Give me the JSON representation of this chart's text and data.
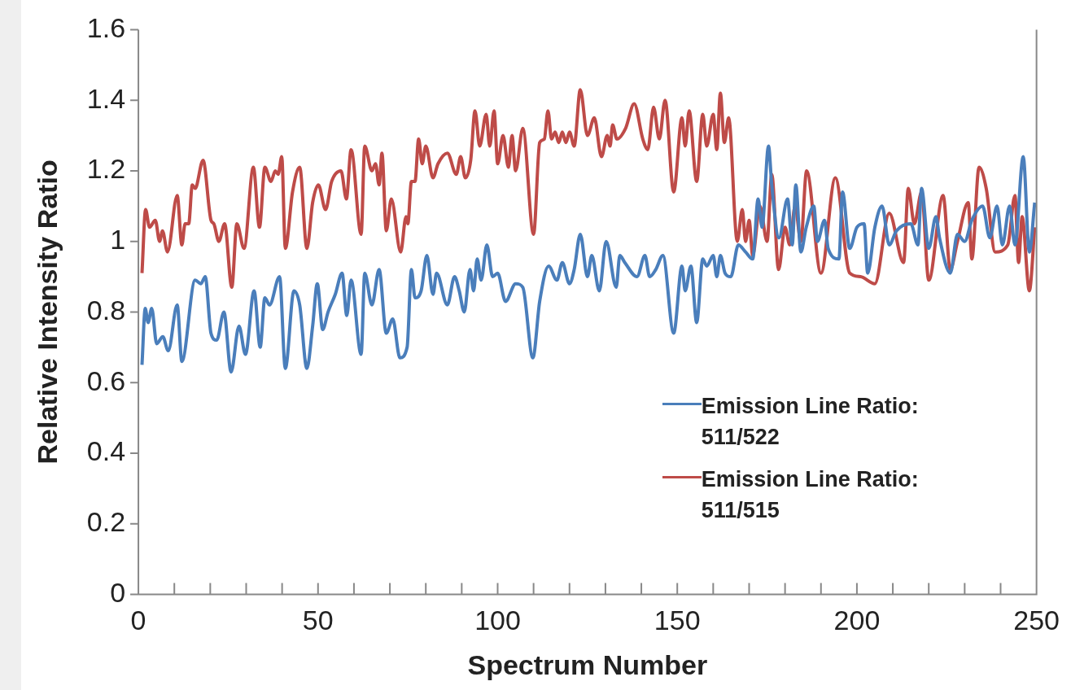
{
  "chart_data": {
    "type": "line",
    "xlabel": "Spectrum Number",
    "ylabel": "Relative Intensity Ratio",
    "xlim": [
      0,
      250
    ],
    "xticks": [
      0,
      {
        "value": 10,
        "label": null
      },
      {
        "value": 20,
        "label": null
      },
      {
        "value": 30,
        "label": null
      },
      {
        "value": 40,
        "label": null
      },
      50,
      {
        "value": 60,
        "label": null
      },
      {
        "value": 70,
        "label": null
      },
      {
        "value": 80,
        "label": null
      },
      {
        "value": 90,
        "label": null
      },
      100,
      {
        "value": 110,
        "label": null
      },
      {
        "value": 120,
        "label": null
      },
      {
        "value": 130,
        "label": null
      },
      {
        "value": 140,
        "label": null
      },
      150,
      {
        "value": 160,
        "label": null
      },
      {
        "value": 170,
        "label": null
      },
      {
        "value": 180,
        "label": null
      },
      {
        "value": 190,
        "label": null
      },
      200,
      {
        "value": 210,
        "label": null
      },
      {
        "value": 220,
        "label": null
      },
      {
        "value": 230,
        "label": null
      },
      {
        "value": 240,
        "label": null
      },
      250
    ],
    "ylim": [
      0,
      1.6
    ],
    "yticks": [
      0,
      0.2,
      0.4,
      0.6,
      0.8,
      1,
      1.2,
      1.4,
      1.6
    ],
    "grid": false,
    "legend": "bottom right",
    "line_style": "solid",
    "marker": "none",
    "series": [
      {
        "name": "Emission Line Ratio: 511/522",
        "color": "#4a7ebb",
        "x": [
          1,
          1.9,
          2.7,
          3.7,
          5.1,
          6.8,
          8.3,
          10.8,
          12.1,
          15.8,
          17.4,
          18.6,
          20.2,
          21.8,
          23.8,
          25.8,
          28,
          29.8,
          32.2,
          33.9,
          35.2,
          36.5,
          39.3,
          40.9,
          43.3,
          44.9,
          46.9,
          48.5,
          49.8,
          51.3,
          52.8,
          54.8,
          56.7,
          58,
          59.2,
          62,
          63,
          65,
          67,
          69,
          70.8,
          72.8,
          74.8,
          76,
          77,
          78.7,
          80.3,
          82,
          83,
          86,
          88,
          89.3,
          90.7,
          92.3,
          93.3,
          94.3,
          95.4,
          97,
          98.6,
          100,
          102.2,
          105,
          107,
          109.8,
          111.7,
          114.2,
          116.5,
          118,
          120,
          121.3,
          123,
          125,
          126.2,
          128.3,
          130.2,
          133,
          134,
          135.4,
          138.8,
          141,
          142.3,
          144,
          146,
          149,
          151.3,
          152.2,
          153.8,
          155.4,
          157.1,
          158.2,
          160,
          161,
          162,
          163.3,
          164.9,
          167,
          169,
          171,
          172.5,
          173.6,
          175.4,
          176.3,
          178.3,
          180.7,
          182,
          183,
          184.4,
          185.9,
          188,
          189,
          191,
          192,
          195,
          196,
          198,
          200,
          202,
          203,
          205,
          207,
          209,
          211,
          215,
          217,
          218,
          220,
          222,
          223,
          226,
          228,
          230,
          232,
          235,
          237,
          239,
          240.5,
          242.5,
          244,
          246.3,
          248,
          249.5
        ],
        "values": [
          0.65,
          0.81,
          0.77,
          0.81,
          0.71,
          0.73,
          0.69,
          0.82,
          0.66,
          0.89,
          0.88,
          0.9,
          0.74,
          0.72,
          0.8,
          0.63,
          0.76,
          0.68,
          0.86,
          0.7,
          0.84,
          0.82,
          0.9,
          0.64,
          0.86,
          0.82,
          0.64,
          0.76,
          0.88,
          0.75,
          0.8,
          0.85,
          0.91,
          0.79,
          0.89,
          0.68,
          0.91,
          0.82,
          0.92,
          0.74,
          0.78,
          0.67,
          0.7,
          0.92,
          0.84,
          0.86,
          0.96,
          0.85,
          0.91,
          0.82,
          0.9,
          0.86,
          0.8,
          0.92,
          0.86,
          0.95,
          0.89,
          0.99,
          0.9,
          0.91,
          0.83,
          0.88,
          0.87,
          0.67,
          0.83,
          0.93,
          0.89,
          0.94,
          0.88,
          0.92,
          1.02,
          0.9,
          0.96,
          0.86,
          1,
          0.87,
          0.96,
          0.94,
          0.9,
          0.96,
          0.9,
          0.92,
          0.96,
          0.74,
          0.93,
          0.86,
          0.93,
          0.77,
          0.95,
          0.93,
          0.96,
          0.9,
          0.96,
          0.91,
          0.9,
          0.99,
          0.97,
          0.95,
          1.12,
          1.04,
          1.27,
          1.16,
          1.01,
          1.12,
          0.99,
          1.16,
          0.97,
          1.04,
          1.1,
          1,
          1.06,
          0.98,
          0.95,
          1.14,
          0.98,
          1.04,
          1.05,
          0.91,
          1.04,
          1.1,
          0.99,
          1.03,
          1.05,
          0.99,
          1.15,
          0.98,
          1.07,
          1.01,
          0.91,
          1.02,
          1,
          1.06,
          1.1,
          1.01,
          1.1,
          0.99,
          1.1,
          0.99,
          1.24,
          0.97,
          1.11
        ]
      },
      {
        "name": "Emission Line Ratio: 511/515",
        "color": "#be4b48",
        "x": [
          1,
          2,
          3.1,
          4.7,
          5.9,
          6.7,
          8.1,
          10.8,
          12.1,
          13,
          14,
          15,
          15.8,
          18,
          20.2,
          21,
          22.4,
          24,
          26,
          27.4,
          29.4,
          32,
          33.7,
          35.2,
          36.9,
          38.1,
          38.9,
          39.9,
          40.9,
          42.9,
          44.9,
          46.9,
          48.5,
          50.1,
          52.1,
          53.8,
          56.4,
          57.9,
          59.2,
          62,
          63,
          65,
          66,
          67,
          67.8,
          69,
          70.4,
          73,
          74.5,
          75,
          76,
          77,
          78,
          79,
          80,
          82,
          83.4,
          86,
          88.5,
          89.7,
          91,
          92.5,
          93.7,
          95,
          96.8,
          97.8,
          99,
          100,
          101.5,
          103,
          104,
          105,
          107,
          110,
          111.7,
          113,
          114,
          115,
          116,
          117,
          118,
          119,
          120,
          121.3,
          123,
          125,
          126.9,
          128.9,
          130.5,
          131.3,
          132,
          133.2,
          135.6,
          138,
          140.4,
          141.8,
          143.4,
          145,
          146.6,
          149,
          151.3,
          152.2,
          153.3,
          155.4,
          157.1,
          158.2,
          160,
          161,
          162,
          163.1,
          164.3,
          166.7,
          168.1,
          169,
          170,
          171,
          173,
          175,
          176.3,
          178.2,
          180,
          181.3,
          182.8,
          184.4,
          186,
          190,
          194,
          198,
          201,
          205,
          209,
          213,
          214.3,
          216,
          218,
          220,
          224,
          226,
          228,
          231,
          232,
          234,
          236,
          238.5,
          242,
          244,
          245,
          246,
          248,
          249.5
        ],
        "values": [
          0.91,
          1.09,
          1.04,
          1.06,
          1,
          1.03,
          0.97,
          1.13,
          0.99,
          1.05,
          1.05,
          1.16,
          1.15,
          1.23,
          1.06,
          1.05,
          1,
          1.05,
          0.87,
          1.05,
          0.98,
          1.21,
          1.04,
          1.21,
          1.17,
          1.2,
          1.19,
          1.24,
          0.98,
          1.14,
          1.21,
          0.98,
          1.11,
          1.16,
          1.09,
          1.17,
          1.2,
          1.12,
          1.26,
          1.02,
          1.27,
          1.2,
          1.22,
          1.16,
          1.25,
          1.03,
          1.12,
          0.97,
          1.07,
          1.05,
          1.17,
          1.17,
          1.29,
          1.22,
          1.27,
          1.18,
          1.22,
          1.25,
          1.19,
          1.24,
          1.18,
          1.23,
          1.37,
          1.27,
          1.36,
          1.27,
          1.37,
          1.22,
          1.3,
          1.21,
          1.3,
          1.2,
          1.32,
          1.02,
          1.28,
          1.29,
          1.37,
          1.29,
          1.31,
          1.28,
          1.31,
          1.28,
          1.31,
          1.27,
          1.43,
          1.3,
          1.35,
          1.24,
          1.3,
          1.27,
          1.33,
          1.29,
          1.32,
          1.39,
          1.29,
          1.26,
          1.38,
          1.29,
          1.4,
          1.14,
          1.35,
          1.27,
          1.37,
          1.17,
          1.36,
          1.27,
          1.36,
          1.26,
          1.42,
          1.28,
          1.35,
          1,
          1.09,
          1,
          1.06,
          0.96,
          1.1,
          1,
          1.19,
          0.92,
          1.04,
          0.99,
          1.1,
          1,
          1.2,
          0.91,
          1.18,
          0.91,
          0.9,
          0.88,
          1.08,
          0.94,
          1.15,
          1.05,
          1.14,
          0.89,
          1.13,
          0.92,
          1,
          1.11,
          0.95,
          1.21,
          1.15,
          0.97,
          0.99,
          1.13,
          0.94,
          1.07,
          0.86,
          1.04
        ]
      }
    ]
  }
}
